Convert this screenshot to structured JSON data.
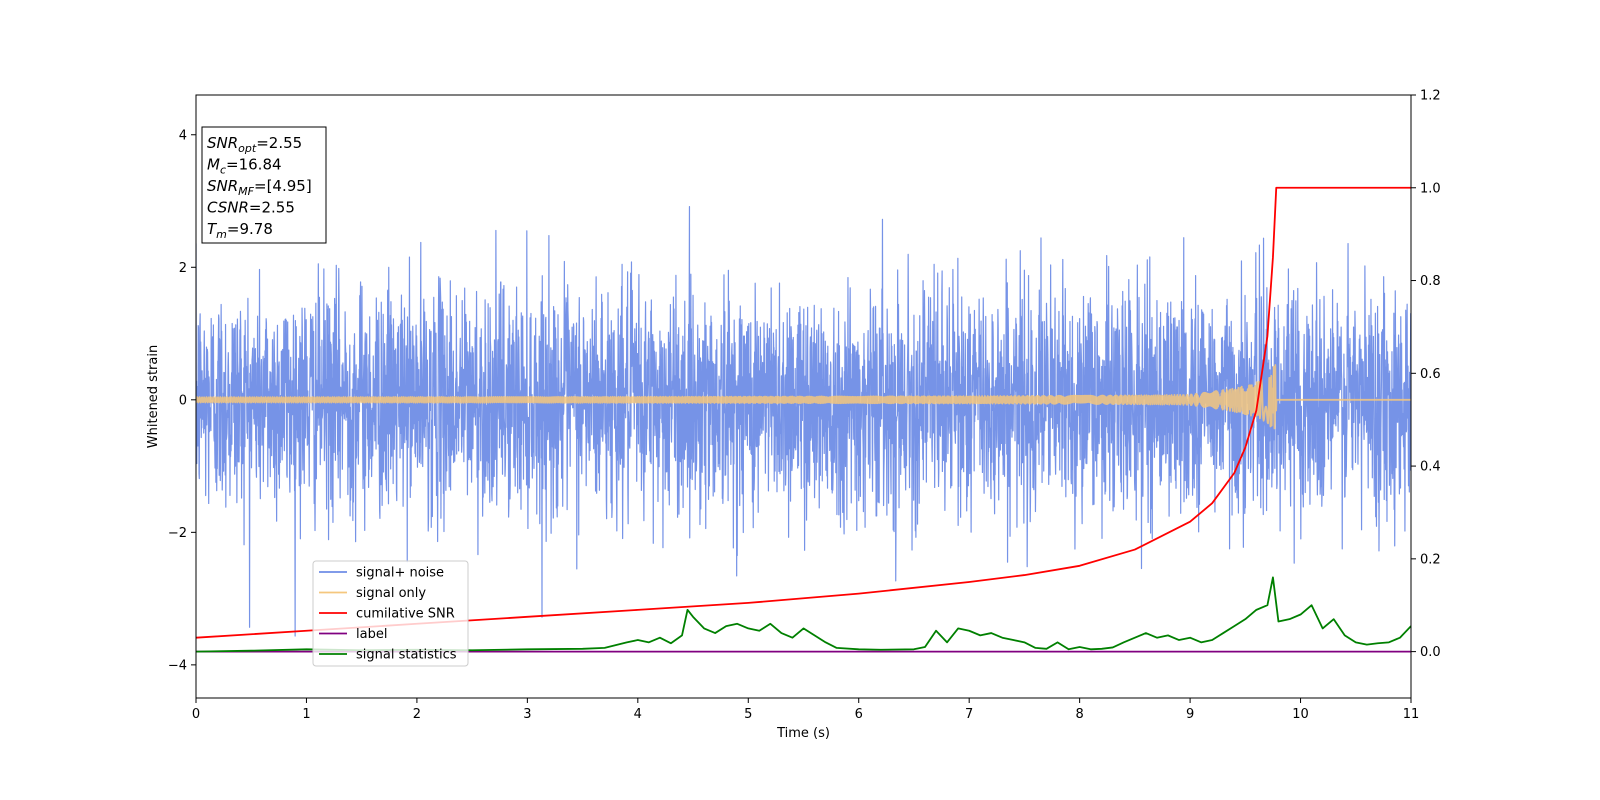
{
  "chart_data": {
    "type": "line",
    "xlabel": "Time (s)",
    "ylabel": "Whitened strain",
    "xlim": [
      0,
      11
    ],
    "ylim": [
      -4.5,
      4.6
    ],
    "y2lim": [
      -0.1,
      1.2
    ],
    "x_ticks": [
      0,
      1,
      2,
      3,
      4,
      5,
      6,
      7,
      8,
      9,
      10,
      11
    ],
    "x_tick_labels": [
      "0",
      "1",
      "2",
      "3",
      "4",
      "5",
      "6",
      "7",
      "8",
      "9",
      "10",
      "11"
    ],
    "y_ticks": [
      -4,
      -2,
      0,
      2,
      4
    ],
    "y_tick_labels": [
      "−4",
      "−2",
      "0",
      "2",
      "4"
    ],
    "y2_ticks": [
      0.0,
      0.2,
      0.4,
      0.6,
      0.8,
      1.0,
      1.2
    ],
    "y2_tick_labels": [
      "0.0",
      "0.2",
      "0.4",
      "0.6",
      "0.8",
      "1.0",
      "1.2"
    ],
    "grid": false,
    "legend_position": "lower-left",
    "annotation": [
      {
        "main": "SNR",
        "sub": "opt",
        "value": "=2.55"
      },
      {
        "main": "M",
        "sub": "c",
        "value": "=16.84"
      },
      {
        "main": "SNR",
        "sub": "MF",
        "value": "=[4.95]"
      },
      {
        "main": "CSNR",
        "sub": "",
        "value": "=2.55"
      },
      {
        "main": "T",
        "sub": "m",
        "value": "=9.78"
      }
    ],
    "series": [
      {
        "name": "signal+ noise",
        "axis": "left",
        "color": "#6f8de6",
        "kind": "noise",
        "noise_std": 0.85,
        "noise_peak": 4.15,
        "samples": 4400
      },
      {
        "name": "signal only",
        "axis": "left",
        "color": "#f5c77e",
        "kind": "chirp",
        "t_merge": 9.78,
        "peak_amplitude": 0.55
      },
      {
        "name": "cumilative SNR",
        "axis": "right",
        "color": "#ff0000",
        "x": [
          0,
          1,
          2,
          3,
          4,
          5,
          6,
          7,
          7.5,
          8,
          8.5,
          9,
          9.2,
          9.4,
          9.5,
          9.6,
          9.7,
          9.75,
          9.78,
          10,
          11
        ],
        "y": [
          0.03,
          0.045,
          0.06,
          0.075,
          0.09,
          0.105,
          0.125,
          0.15,
          0.165,
          0.185,
          0.22,
          0.28,
          0.32,
          0.385,
          0.44,
          0.52,
          0.68,
          0.85,
          1.0,
          1.0,
          1.0
        ]
      },
      {
        "name": "label",
        "axis": "right",
        "color": "#800080",
        "x": [
          0,
          11
        ],
        "y": [
          0,
          0
        ]
      },
      {
        "name": "signal statistics",
        "axis": "right",
        "color": "#008000",
        "x": [
          0,
          0.5,
          1.0,
          1.5,
          2.0,
          2.5,
          3.0,
          3.5,
          3.7,
          3.9,
          4.0,
          4.1,
          4.2,
          4.3,
          4.4,
          4.45,
          4.5,
          4.6,
          4.7,
          4.8,
          4.9,
          5.0,
          5.1,
          5.2,
          5.3,
          5.4,
          5.5,
          5.6,
          5.7,
          5.8,
          6.0,
          6.2,
          6.5,
          6.6,
          6.7,
          6.8,
          6.9,
          7.0,
          7.1,
          7.2,
          7.3,
          7.4,
          7.5,
          7.6,
          7.7,
          7.8,
          7.9,
          8.0,
          8.1,
          8.2,
          8.3,
          8.4,
          8.5,
          8.6,
          8.7,
          8.8,
          8.9,
          9.0,
          9.1,
          9.2,
          9.3,
          9.4,
          9.5,
          9.6,
          9.7,
          9.75,
          9.8,
          9.9,
          10.0,
          10.1,
          10.2,
          10.3,
          10.4,
          10.5,
          10.6,
          10.7,
          10.8,
          10.9,
          11.0
        ],
        "y": [
          0.0,
          0.002,
          0.005,
          0.003,
          0.004,
          0.003,
          0.005,
          0.006,
          0.008,
          0.02,
          0.025,
          0.02,
          0.03,
          0.018,
          0.035,
          0.09,
          0.075,
          0.05,
          0.04,
          0.055,
          0.06,
          0.05,
          0.045,
          0.06,
          0.04,
          0.03,
          0.05,
          0.035,
          0.02,
          0.008,
          0.005,
          0.004,
          0.005,
          0.01,
          0.045,
          0.02,
          0.05,
          0.045,
          0.035,
          0.04,
          0.03,
          0.025,
          0.02,
          0.008,
          0.006,
          0.02,
          0.005,
          0.01,
          0.005,
          0.006,
          0.009,
          0.02,
          0.03,
          0.04,
          0.03,
          0.035,
          0.025,
          0.03,
          0.02,
          0.025,
          0.04,
          0.055,
          0.07,
          0.09,
          0.1,
          0.16,
          0.065,
          0.07,
          0.08,
          0.1,
          0.05,
          0.07,
          0.035,
          0.02,
          0.015,
          0.018,
          0.02,
          0.03,
          0.055
        ]
      }
    ]
  }
}
